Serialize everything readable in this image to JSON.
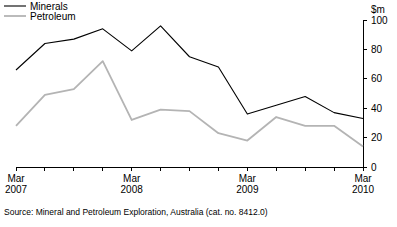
{
  "chart_data": {
    "type": "line",
    "y_label": "$m",
    "source": "Source: Mineral and Petroleum Exploration, Australia (cat. no. 8412.0)",
    "categories": [
      "Mar 2007",
      null,
      null,
      null,
      "Mar 2008",
      null,
      null,
      null,
      "Mar 2009",
      null,
      null,
      null,
      "Mar 2010"
    ],
    "series": [
      {
        "name": "Minerals",
        "color": "#000000",
        "values": [
          66,
          84,
          87,
          94,
          79,
          96,
          75,
          68,
          36,
          42,
          48,
          37,
          33
        ]
      },
      {
        "name": "Petroleum",
        "color": "#b4b4b4",
        "values": [
          28,
          49,
          53,
          72,
          32,
          39,
          38,
          23,
          18,
          34,
          28,
          28,
          14
        ]
      }
    ],
    "ylim": [
      0,
      100
    ],
    "yticks": [
      0,
      20,
      40,
      60,
      80,
      100
    ],
    "grid": false,
    "legend": "top-left"
  }
}
